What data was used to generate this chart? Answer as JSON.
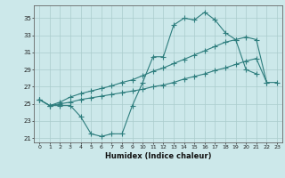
{
  "xlabel": "Humidex (Indice chaleur)",
  "bg_color": "#cce8ea",
  "grid_color": "#aacccc",
  "line_color": "#2d7d7d",
  "xlim": [
    -0.5,
    23.5
  ],
  "ylim": [
    20.5,
    36.5
  ],
  "yticks": [
    21,
    23,
    25,
    27,
    29,
    31,
    33,
    35
  ],
  "xtick_labels": [
    "0",
    "1",
    "2",
    "3",
    "4",
    "5",
    "6",
    "7",
    "8",
    "9",
    "10",
    "11",
    "12",
    "13",
    "14",
    "15",
    "16",
    "17",
    "18",
    "19",
    "20",
    "21",
    "22",
    "23"
  ],
  "line1_x": [
    0,
    1,
    2,
    3,
    4,
    5,
    6,
    7,
    8,
    9,
    10,
    11,
    12,
    13,
    14,
    15,
    16,
    17,
    18,
    19,
    20,
    21
  ],
  "line1_y": [
    25.5,
    24.8,
    24.8,
    24.8,
    23.5,
    21.5,
    21.2,
    21.5,
    21.5,
    24.8,
    27.5,
    30.5,
    30.5,
    34.2,
    35.0,
    34.8,
    35.7,
    34.8,
    33.3,
    32.5,
    29.0,
    28.5
  ],
  "line2_x": [
    0,
    1,
    2,
    3,
    4,
    5,
    6,
    7,
    8,
    9,
    10,
    11,
    12,
    13,
    14,
    15,
    16,
    17,
    18,
    19,
    20,
    21,
    22
  ],
  "line2_y": [
    25.5,
    24.8,
    25.2,
    25.8,
    26.2,
    26.5,
    26.8,
    27.1,
    27.5,
    27.8,
    28.3,
    28.8,
    29.2,
    29.7,
    30.2,
    30.7,
    31.2,
    31.7,
    32.2,
    32.5,
    32.8,
    32.5,
    27.5
  ],
  "line3_x": [
    0,
    1,
    2,
    3,
    4,
    5,
    6,
    7,
    8,
    9,
    10,
    11,
    12,
    13,
    14,
    15,
    16,
    17,
    18,
    19,
    20,
    21,
    22,
    23
  ],
  "line3_y": [
    25.5,
    24.8,
    25.0,
    25.2,
    25.5,
    25.7,
    25.9,
    26.1,
    26.3,
    26.5,
    26.7,
    27.0,
    27.2,
    27.5,
    27.9,
    28.2,
    28.5,
    28.9,
    29.2,
    29.6,
    30.0,
    30.3,
    27.5,
    27.5
  ]
}
